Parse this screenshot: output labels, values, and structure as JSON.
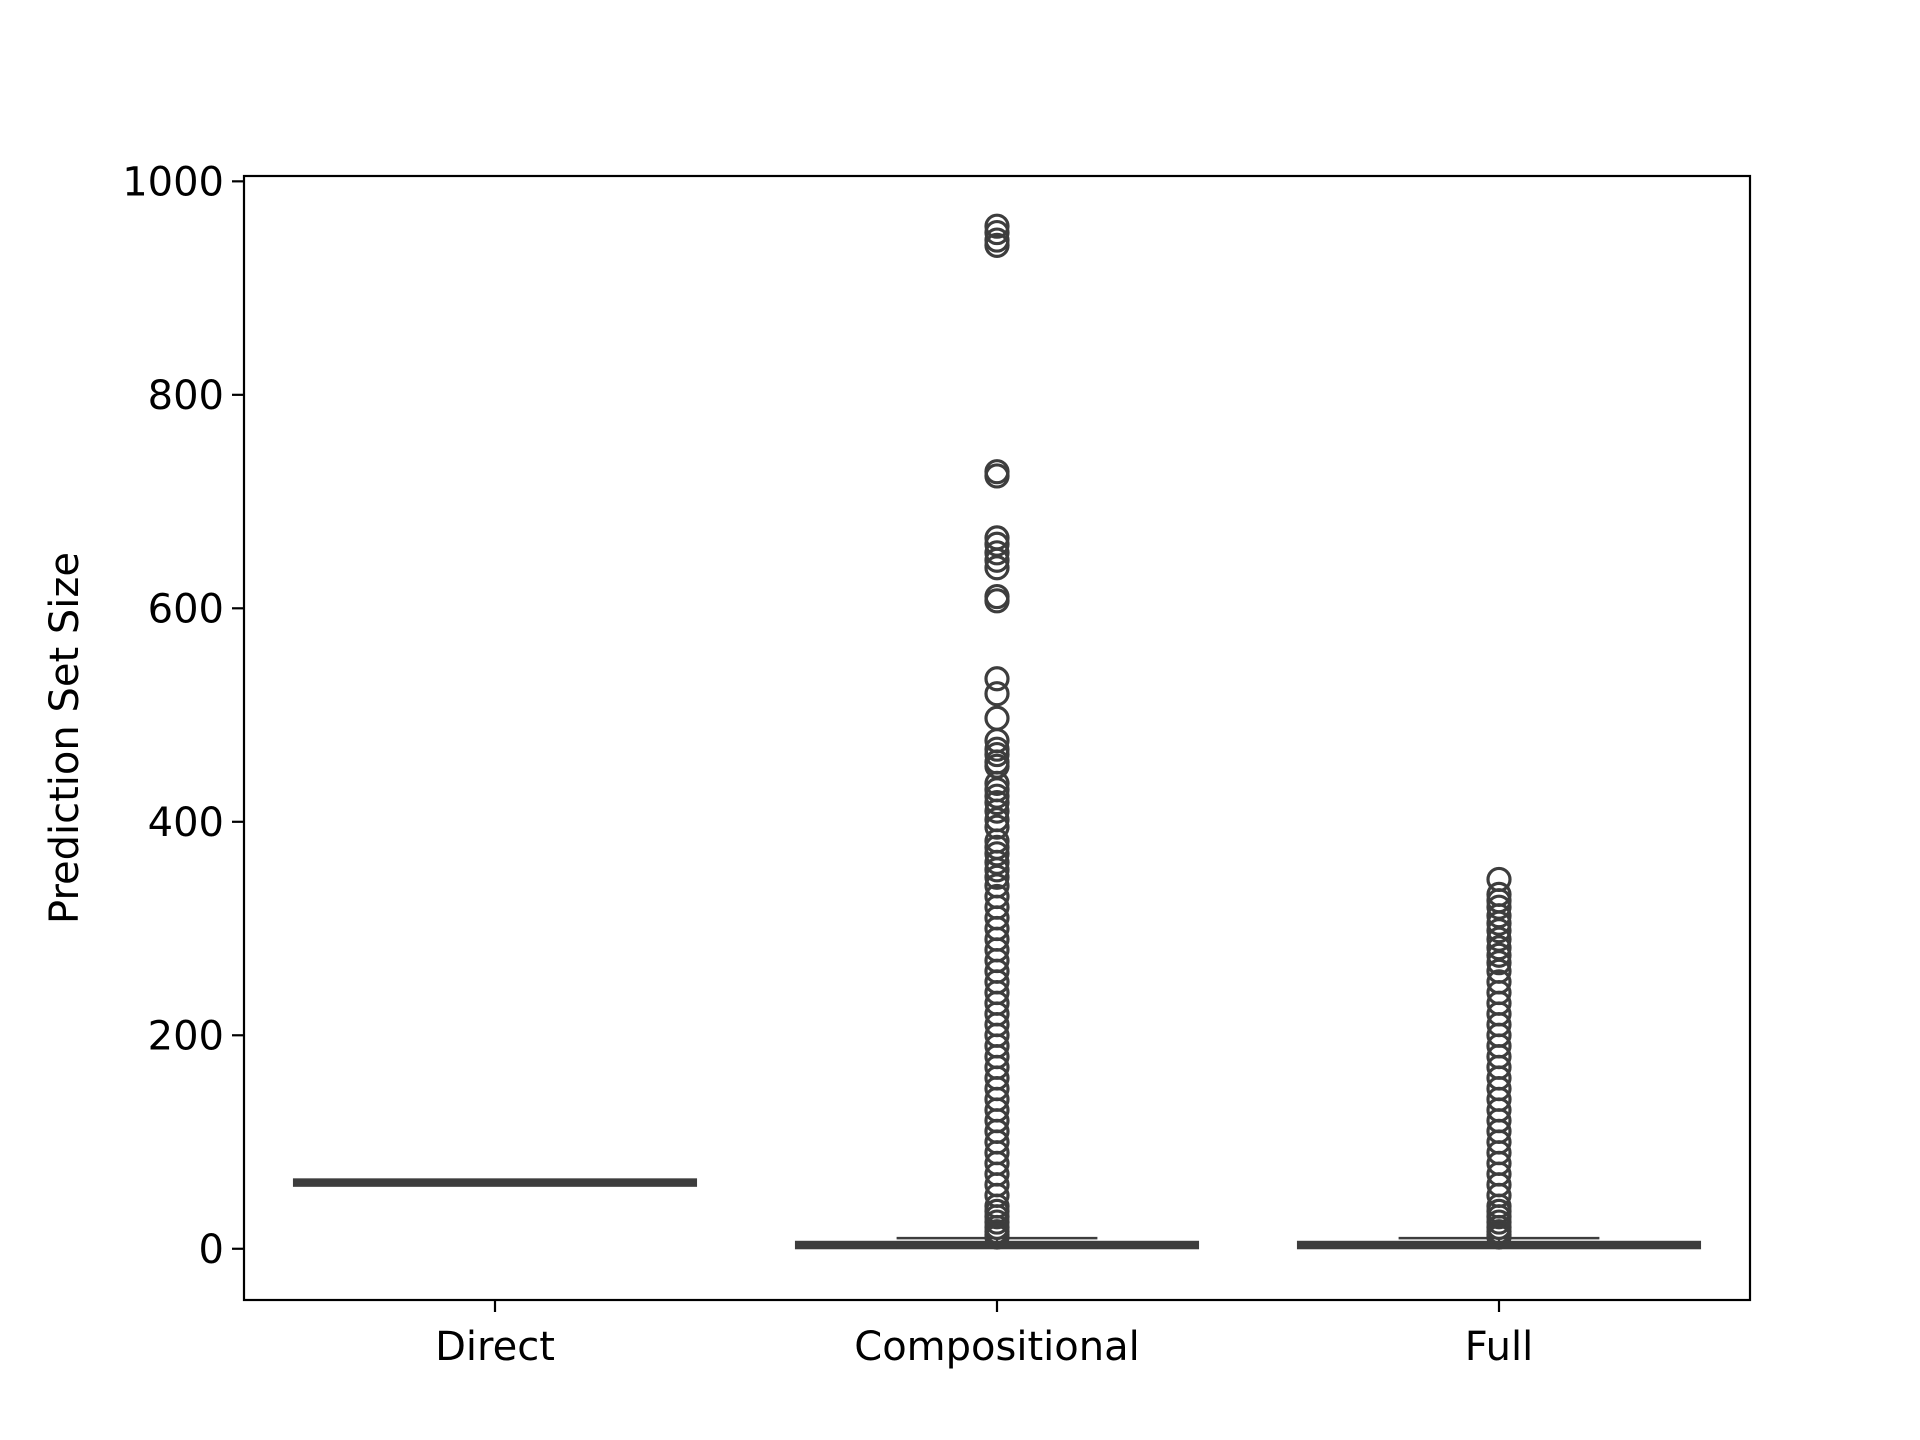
{
  "chart_data": {
    "type": "box",
    "title": "",
    "xlabel": "",
    "ylabel": "Prediction Set Size",
    "ylim": [
      -48,
      1005
    ],
    "yticks": [
      0,
      200,
      400,
      600,
      800,
      1000
    ],
    "yticklabels": [
      "0",
      "200",
      "400",
      "600",
      "800",
      "1000"
    ],
    "categories": [
      "Direct",
      "Compositional",
      "Full"
    ],
    "grid": false,
    "legend": "none",
    "colors": {
      "box": "#3d3d3d",
      "axes": "#000000",
      "background": "#ffffff"
    },
    "boxes": [
      {
        "category": "Direct",
        "whisker_low": 62,
        "q1": 62,
        "median": 62,
        "q3": 62,
        "whisker_high": 62,
        "outliers": []
      },
      {
        "category": "Compositional",
        "whisker_low": 1,
        "q1": 2,
        "median": 3,
        "q3": 5,
        "whisker_high": 10,
        "outliers": [
          958,
          952,
          945,
          940,
          728,
          724,
          666,
          660,
          652,
          645,
          638,
          611,
          607,
          534,
          520,
          497,
          476,
          468,
          463,
          456,
          452,
          436,
          430,
          424,
          418,
          410,
          402,
          395,
          382,
          376,
          370,
          362,
          355,
          348,
          340,
          330,
          320,
          310,
          300,
          290,
          280,
          270,
          260,
          250,
          240,
          230,
          220,
          210,
          200,
          190,
          180,
          170,
          160,
          150,
          140,
          130,
          120,
          110,
          100,
          90,
          80,
          70,
          60,
          50,
          40,
          35,
          30,
          25,
          20,
          16,
          13,
          11
        ]
      },
      {
        "category": "Full",
        "whisker_low": 1,
        "q1": 2,
        "median": 3,
        "q3": 5,
        "whisker_high": 10,
        "outliers": [
          346,
          332,
          326,
          320,
          312,
          305,
          298,
          290,
          282,
          275,
          268,
          260,
          250,
          240,
          230,
          220,
          210,
          200,
          190,
          180,
          170,
          160,
          150,
          140,
          130,
          120,
          110,
          100,
          90,
          80,
          70,
          60,
          50,
          40,
          35,
          30,
          25,
          20,
          16,
          13,
          11
        ]
      }
    ]
  }
}
